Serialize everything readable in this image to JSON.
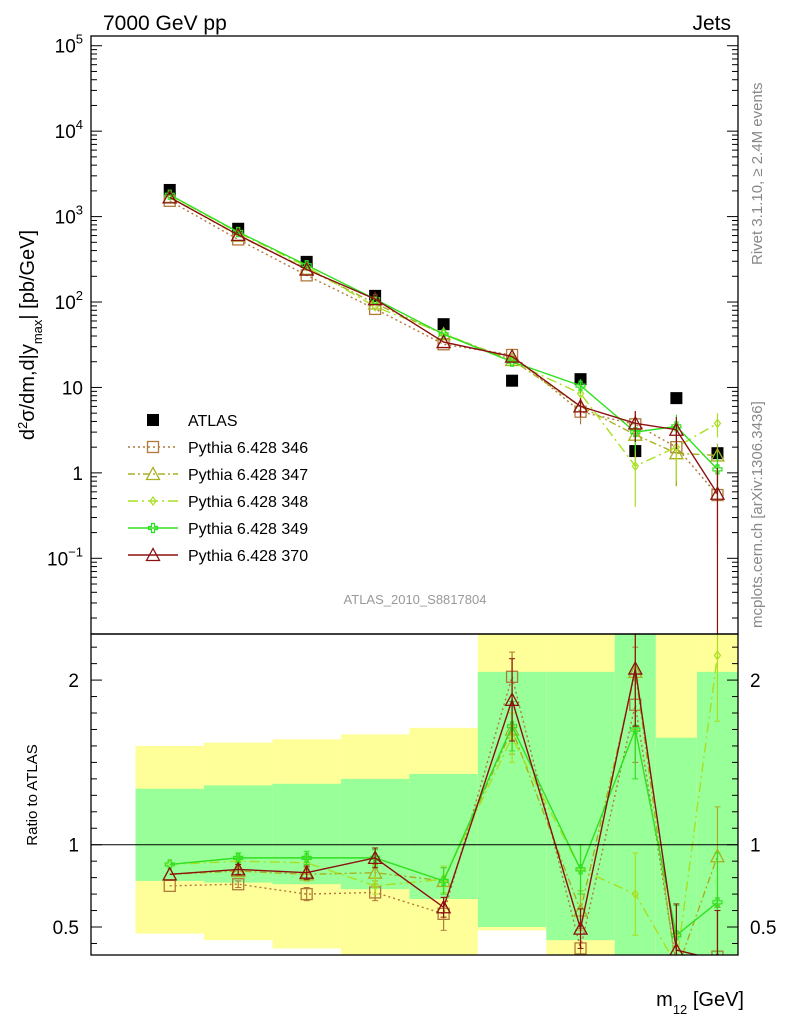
{
  "header": {
    "left": "7000 GeV pp",
    "right": "Jets"
  },
  "side_labels": {
    "rivet": "Rivet 3.1.10, ≥ 2.4M events",
    "mcplots": "mcplots.cern.ch [arXiv:1306.3436]"
  },
  "analysis_id": "ATLAS_2010_S8817804",
  "colors": {
    "atlas": "#000000",
    "p346": "#b07a3a",
    "p347": "#a8b020",
    "p348": "#a8e020",
    "p349": "#30e020",
    "p370": "#8b1010",
    "band_outer": "#ffff99",
    "band_inner": "#99ff99"
  },
  "chart_data": [
    {
      "type": "line",
      "panel": "main",
      "ylabel_parts": {
        "a": "d",
        "sup": "2",
        "b": "σ/dm,d|y",
        "sub": "max",
        "c": "| [pb/GeV]"
      },
      "xlabel_parts": {
        "a": "m",
        "sub": "12",
        "b": " [GeV]"
      },
      "yscale": "log",
      "ylim": [
        0.013,
        130000
      ],
      "yticks": [
        {
          "v": 100000,
          "base": "10",
          "exp": "5"
        },
        {
          "v": 10000,
          "base": "10",
          "exp": "4"
        },
        {
          "v": 1000,
          "base": "10",
          "exp": "3"
        },
        {
          "v": 100,
          "base": "10",
          "exp": "2"
        },
        {
          "v": 10,
          "base": "10",
          "exp": ""
        },
        {
          "v": 1,
          "base": "1",
          "exp": ""
        },
        {
          "v": 0.1,
          "base": "10",
          "exp": "−1"
        }
      ],
      "x_bins": [
        {
          "lo": 0,
          "hi": 1.0,
          "c": 0.5
        },
        {
          "lo": 1.0,
          "hi": 2.0,
          "c": 1.5
        },
        {
          "lo": 2.0,
          "hi": 3.0,
          "c": 2.5
        },
        {
          "lo": 3.0,
          "hi": 4.0,
          "c": 3.5
        },
        {
          "lo": 4.0,
          "hi": 5.0,
          "c": 4.5
        },
        {
          "lo": 5.0,
          "hi": 6.0,
          "c": 5.5
        },
        {
          "lo": 6.0,
          "hi": 7.0,
          "c": 6.5
        },
        {
          "lo": 7.0,
          "hi": 7.6,
          "c": 7.3
        },
        {
          "lo": 7.6,
          "hi": 8.2,
          "c": 7.9
        },
        {
          "lo": 8.2,
          "hi": 8.8,
          "c": 8.5
        }
      ],
      "xlim": [
        -0.65,
        8.8
      ],
      "series": [
        {
          "name": "ATLAS",
          "color_key": "atlas",
          "marker": "square-filled",
          "dash": "",
          "draw_line": false,
          "values": [
            2050,
            720,
            295,
            118,
            55,
            12,
            12.5,
            1.8,
            7.5,
            1.7
          ],
          "err": [
            0,
            0,
            0,
            0,
            0,
            0,
            0,
            0,
            0,
            0
          ]
        },
        {
          "name": "Pythia 6.428 346",
          "color_key": "p346",
          "marker": "square-open",
          "dash": "2,3",
          "draw_line": true,
          "values": [
            1530,
            540,
            205,
            83,
            32,
            24,
            5.2,
            3.7,
            2.0,
            0.55
          ],
          "err": [
            0,
            0,
            0,
            0,
            0,
            0,
            1.5,
            1.5,
            1.3,
            0.4
          ]
        },
        {
          "name": "Pythia 6.428 347",
          "color_key": "p347",
          "marker": "triangle-open",
          "dash": "7,3,2,3",
          "draw_line": true,
          "values": [
            1700,
            600,
            245,
            96,
            42,
            21,
            6.0,
            2.8,
            1.7,
            1.6
          ],
          "err": [
            0,
            0,
            0,
            0,
            0,
            0,
            1.5,
            1.5,
            1.0,
            0.6
          ]
        },
        {
          "name": "Pythia 6.428 348",
          "color_key": "p348",
          "marker": "diamond-open",
          "dash": "10,4,2,4",
          "draw_line": true,
          "values": [
            1780,
            650,
            260,
            88,
            43,
            20,
            8.5,
            1.2,
            2.0,
            3.8
          ],
          "err": [
            0,
            0,
            0,
            0,
            0,
            0,
            2.0,
            0.8,
            1.2,
            1.2
          ]
        },
        {
          "name": "Pythia 6.428 349",
          "color_key": "p349",
          "marker": "plus-open",
          "dash": "",
          "draw_line": true,
          "values": [
            1800,
            660,
            270,
            108,
            42,
            20,
            10.5,
            3.0,
            3.5,
            1.1
          ],
          "err": [
            0,
            0,
            0,
            0,
            0,
            0,
            2.0,
            1.2,
            1.3,
            0.6
          ]
        },
        {
          "name": "Pythia 6.428 370",
          "color_key": "p370",
          "marker": "triangle-open",
          "dash": "",
          "draw_line": true,
          "values": [
            1680,
            610,
            240,
            108,
            34,
            23,
            6.0,
            3.8,
            3.2,
            0.57
          ],
          "err": [
            0,
            0,
            0,
            0,
            0,
            0,
            1.5,
            1.5,
            1.3,
            0.57
          ]
        }
      ]
    },
    {
      "type": "line",
      "panel": "ratio",
      "ylabel": "Ratio to ATLAS",
      "ylim": [
        0.33,
        2.28
      ],
      "yticks": [
        {
          "v": 2,
          "label": "2"
        },
        {
          "v": 1,
          "label": "1"
        },
        {
          "v": 0.5,
          "label": "0.5"
        }
      ],
      "bands": {
        "outer": [
          [
            0.46,
            1.6
          ],
          [
            0.42,
            1.62
          ],
          [
            0.37,
            1.64
          ],
          [
            0.33,
            1.67
          ],
          [
            0.33,
            1.71
          ],
          [
            0.48,
            2.3
          ],
          [
            0.33,
            2.3
          ],
          [
            0.33,
            2.3
          ],
          [
            0.33,
            2.3
          ],
          [
            0.33,
            2.3
          ]
        ],
        "inner": [
          [
            0.78,
            1.34
          ],
          [
            0.77,
            1.36
          ],
          [
            0.76,
            1.37
          ],
          [
            0.73,
            1.4
          ],
          [
            0.67,
            1.43
          ],
          [
            0.5,
            2.05
          ],
          [
            0.42,
            2.05
          ],
          [
            0.33,
            2.3
          ],
          [
            0.33,
            1.65
          ],
          [
            0.33,
            2.05
          ]
        ]
      },
      "series": [
        {
          "name": "Pythia 6.428 346",
          "color_key": "p346",
          "values": [
            0.75,
            0.76,
            0.7,
            0.71,
            0.58,
            2.02,
            0.37,
            1.85,
            0.27,
            0.32
          ],
          "err": [
            0,
            0.02,
            0.04,
            0.05,
            0.1,
            0.15,
            0.12,
            0.35,
            0.2,
            0.3
          ]
        },
        {
          "name": "Pythia 6.428 347",
          "color_key": "p347",
          "values": [
            0.82,
            0.84,
            0.82,
            0.83,
            0.78,
            1.7,
            0.6,
            2.05,
            0.23,
            0.93
          ],
          "err": [
            0,
            0.03,
            0.04,
            0.05,
            0.08,
            0.15,
            0.12,
            0.35,
            0.15,
            0.3
          ]
        },
        {
          "name": "Pythia 6.428 348",
          "color_key": "p348",
          "values": [
            0.88,
            0.9,
            0.89,
            0.75,
            0.79,
            1.65,
            0.85,
            0.7,
            0.27,
            2.15
          ],
          "err": [
            0,
            0.03,
            0.04,
            0.05,
            0.08,
            0.15,
            0.15,
            0.25,
            0.18,
            0.4
          ]
        },
        {
          "name": "Pythia 6.428 349",
          "color_key": "p349",
          "values": [
            0.88,
            0.92,
            0.92,
            0.92,
            0.78,
            1.72,
            0.85,
            1.7,
            0.45,
            0.65
          ],
          "err": [
            0,
            0.03,
            0.04,
            0.05,
            0.08,
            0.15,
            0.15,
            0.3,
            0.18,
            0.3
          ]
        },
        {
          "name": "Pythia 6.428 370",
          "color_key": "p370",
          "values": [
            0.82,
            0.85,
            0.83,
            0.92,
            0.62,
            1.88,
            0.49,
            2.07,
            0.36,
            0.3
          ],
          "err": [
            0,
            0.03,
            0.04,
            0.06,
            0.06,
            0.25,
            0.12,
            0.35,
            0.28,
            0.3
          ]
        }
      ]
    }
  ]
}
